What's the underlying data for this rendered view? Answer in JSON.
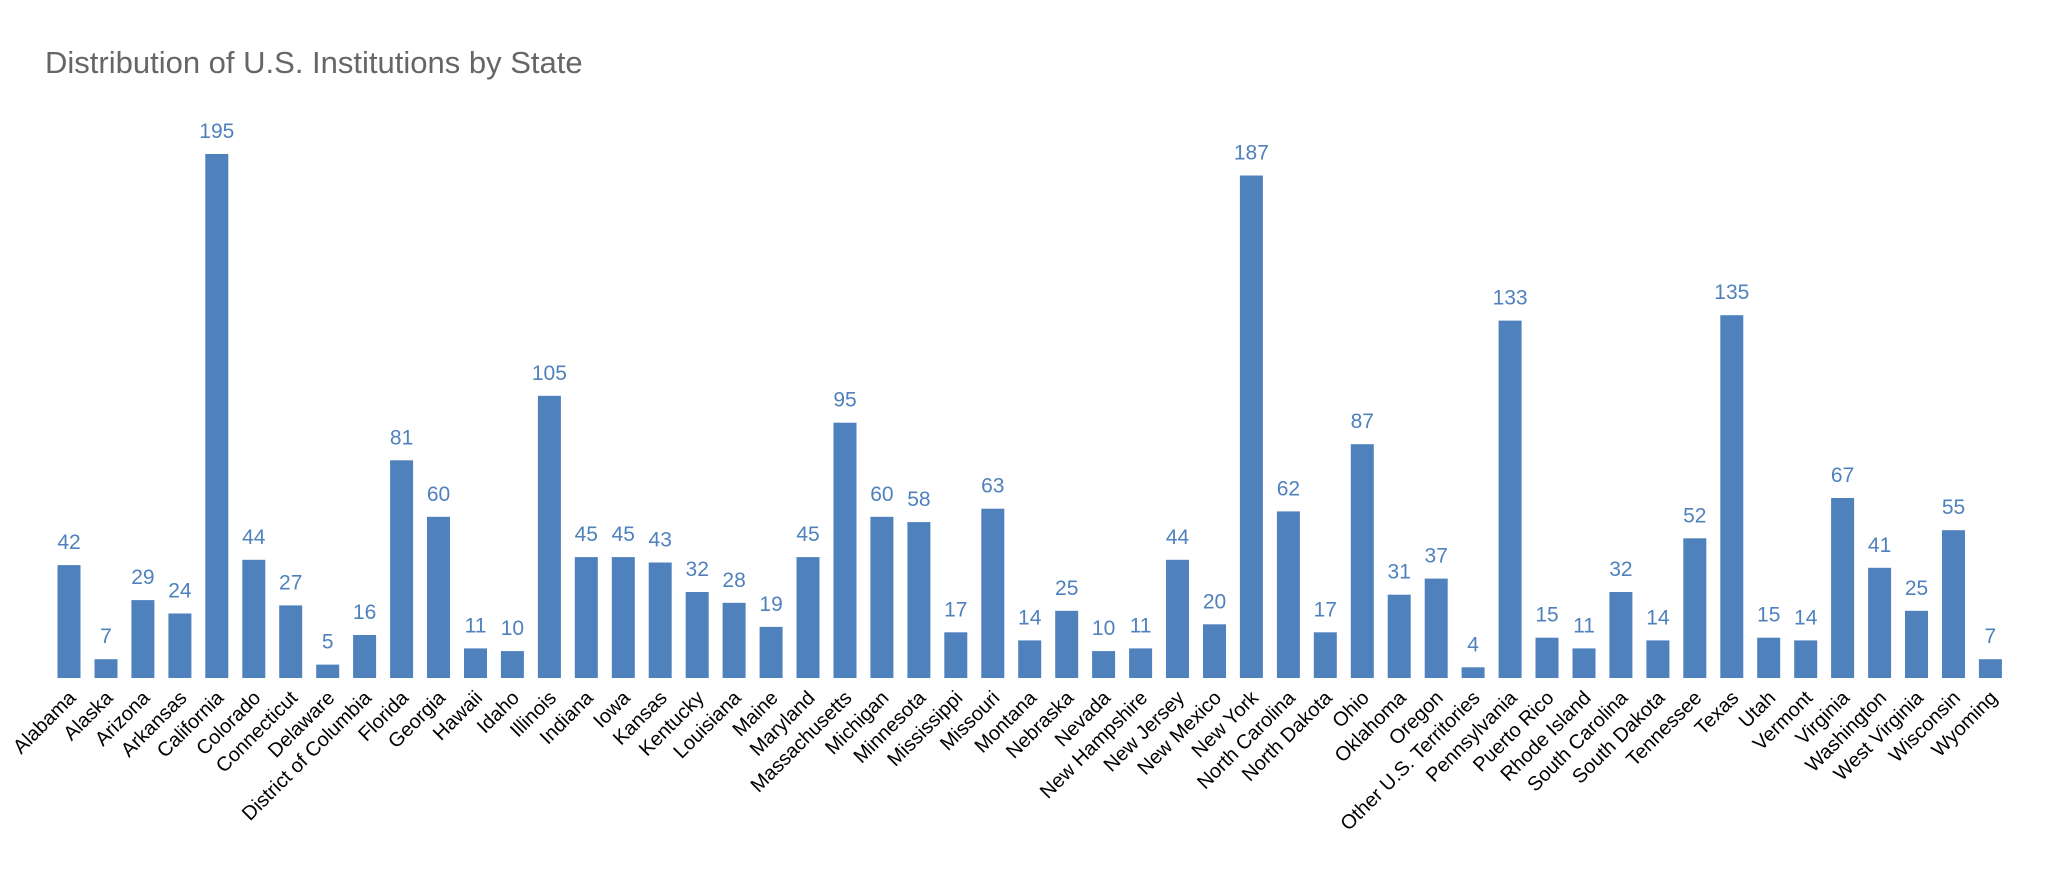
{
  "chart_data": {
    "type": "bar",
    "title": "Distribution of U.S. Institutions by State",
    "xlabel": "",
    "ylabel": "",
    "ylim": [
      0,
      195
    ],
    "grid": false,
    "legend": "none",
    "bar_color": "#4f81bd",
    "label_color": "#4f81bd",
    "categories": [
      "Alabama",
      "Alaska",
      "Arizona",
      "Arkansas",
      "California",
      "Colorado",
      "Connecticut",
      "Delaware",
      "District of Columbia",
      "Florida",
      "Georgia",
      "Hawaii",
      "Idaho",
      "Illinois",
      "Indiana",
      "Iowa",
      "Kansas",
      "Kentucky",
      "Louisiana",
      "Maine",
      "Maryland",
      "Massachusetts",
      "Michigan",
      "Minnesota",
      "Mississippi",
      "Missouri",
      "Montana",
      "Nebraska",
      "Nevada",
      "New Hampshire",
      "New Jersey",
      "New Mexico",
      "New York",
      "North Carolina",
      "North Dakota",
      "Ohio",
      "Oklahoma",
      "Oregon",
      "Other U.S. Territories",
      "Pennsylvania",
      "Puerto Rico",
      "Rhode Island",
      "South Carolina",
      "South Dakota",
      "Tennessee",
      "Texas",
      "Utah",
      "Vermont",
      "Virginia",
      "Washington",
      "West Virginia",
      "Wisconsin",
      "Wyoming"
    ],
    "values": [
      42,
      7,
      29,
      24,
      195,
      44,
      27,
      5,
      16,
      81,
      60,
      11,
      10,
      105,
      45,
      45,
      43,
      32,
      28,
      19,
      45,
      95,
      60,
      58,
      17,
      63,
      14,
      25,
      10,
      11,
      44,
      20,
      187,
      62,
      17,
      87,
      31,
      37,
      4,
      133,
      15,
      11,
      32,
      14,
      52,
      135,
      15,
      14,
      67,
      41,
      25,
      55,
      7
    ]
  }
}
